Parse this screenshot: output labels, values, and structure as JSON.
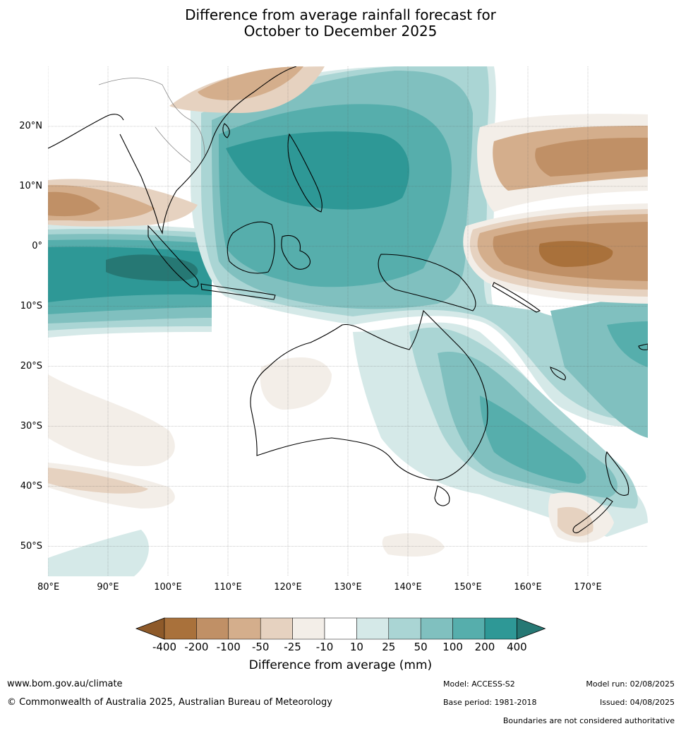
{
  "title": {
    "line1": "Difference from average rainfall forecast for",
    "line2": "October to December 2025"
  },
  "map": {
    "projection": "equirectangular",
    "lon_range": [
      80,
      180
    ],
    "lat_range": [
      -55,
      30
    ],
    "lon_ticks": [
      {
        "value": 80,
        "label": "80°E"
      },
      {
        "value": 90,
        "label": "90°E"
      },
      {
        "value": 100,
        "label": "100°E"
      },
      {
        "value": 110,
        "label": "110°E"
      },
      {
        "value": 120,
        "label": "120°E"
      },
      {
        "value": 130,
        "label": "130°E"
      },
      {
        "value": 140,
        "label": "140°E"
      },
      {
        "value": 150,
        "label": "150°E"
      },
      {
        "value": 160,
        "label": "160°E"
      },
      {
        "value": 170,
        "label": "170°E"
      }
    ],
    "lat_ticks": [
      {
        "value": 20,
        "label": "20°N"
      },
      {
        "value": 10,
        "label": "10°N"
      },
      {
        "value": 0,
        "label": "0°"
      },
      {
        "value": -10,
        "label": "10°S"
      },
      {
        "value": -20,
        "label": "20°S"
      },
      {
        "value": -30,
        "label": "30°S"
      },
      {
        "value": -40,
        "label": "40°S"
      },
      {
        "value": -50,
        "label": "50°S"
      }
    ],
    "gridlines": true,
    "background_color": "#ffffff"
  },
  "colorbar": {
    "title": "Difference from average (mm)",
    "tick_labels": [
      "-400",
      "-200",
      "-100",
      "-50",
      "-25",
      "-10",
      "10",
      "25",
      "50",
      "100",
      "200",
      "400"
    ],
    "colors": [
      "#a9713b",
      "#c09066",
      "#d4ae8c",
      "#e6d2c0",
      "#f3eee8",
      "#ffffff",
      "#d5e9e8",
      "#aad5d4",
      "#80c0bf",
      "#56aeac",
      "#2e9896"
    ],
    "low_extend_color": "#8e5a2a",
    "high_extend_color": "#267874"
  },
  "footer": {
    "url": "www.bom.gov.au/climate",
    "copyright": "© Commonwealth of Australia 2025, Australian Bureau of Meteorology",
    "model": "Model: ACCESS-S2",
    "base_period": "Base period: 1981-2018",
    "model_run": "Model run: 02/08/2025",
    "issued": "Issued: 04/08/2025",
    "disclaimer": "Boundaries are not considered authoritative"
  }
}
